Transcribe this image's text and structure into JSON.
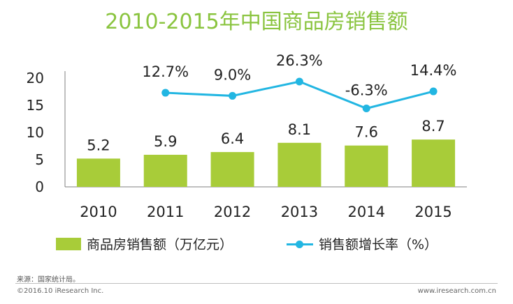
{
  "title": "2010-2015年中国商品房销售额",
  "chart_data": {
    "type": "bar",
    "categories": [
      "2010",
      "2011",
      "2012",
      "2013",
      "2014",
      "2015"
    ],
    "series": [
      {
        "name": "商品房销售额（万亿元）",
        "type": "bar",
        "values": [
          5.2,
          5.9,
          6.4,
          8.1,
          7.6,
          8.7
        ],
        "labels": [
          "5.2",
          "5.9",
          "6.4",
          "8.1",
          "7.6",
          "8.7"
        ],
        "color": "#a8cc39"
      },
      {
        "name": "销售额增长率（%）",
        "type": "line",
        "values": [
          null,
          12.7,
          9.0,
          26.3,
          -6.3,
          14.4
        ],
        "labels": [
          "",
          "12.7%",
          "9.0%",
          "26.3%",
          "-6.3%",
          "14.4%"
        ],
        "color": "#22b6e2"
      }
    ],
    "yticks": [
      "0",
      "5",
      "10",
      "15",
      "20"
    ],
    "ylim": [
      0,
      20
    ],
    "grid": false,
    "legend_position": "bottom"
  },
  "legend": {
    "bar_label": "商品房销售额（万亿元）",
    "line_label": "销售额增长率（%）"
  },
  "source": "来源：国家统计局。",
  "copyright": "©2016.10 iResearch Inc.",
  "website": "www.iresearch.com.cn"
}
